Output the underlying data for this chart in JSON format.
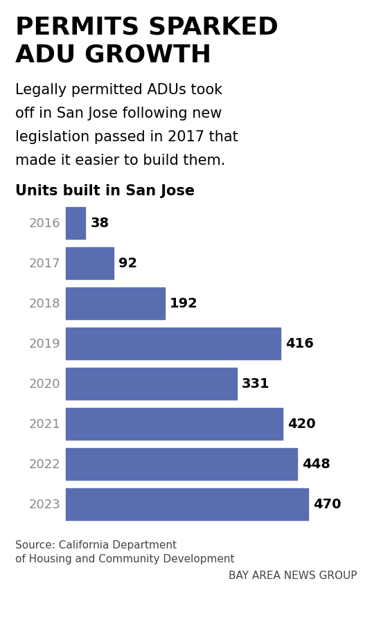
{
  "title_line1": "PERMITS SPARKED",
  "title_line2": "ADU GROWTH",
  "subtitle_lines": [
    "Legally permitted ADUs took",
    "off in San Jose following new",
    "legislation passed in 2017 that",
    "made it easier to build them."
  ],
  "chart_label": "Units built in San Jose",
  "years": [
    "2016",
    "2017",
    "2018",
    "2019",
    "2020",
    "2021",
    "2022",
    "2023"
  ],
  "values": [
    38,
    92,
    192,
    416,
    331,
    420,
    448,
    470
  ],
  "bar_color": "#5b6db1",
  "value_color": "#000000",
  "year_color": "#8a8a8a",
  "background_color": "#ffffff",
  "source_line1": "Source: California Department",
  "source_line2": "of Housing and Community Development",
  "source_line3": "BAY AREA NEWS GROUP",
  "xlim_max": 530,
  "title_fontsize": 26,
  "subtitle_fontsize": 15,
  "chart_label_fontsize": 15,
  "year_fontsize": 13,
  "value_fontsize": 14,
  "source_fontsize": 11
}
